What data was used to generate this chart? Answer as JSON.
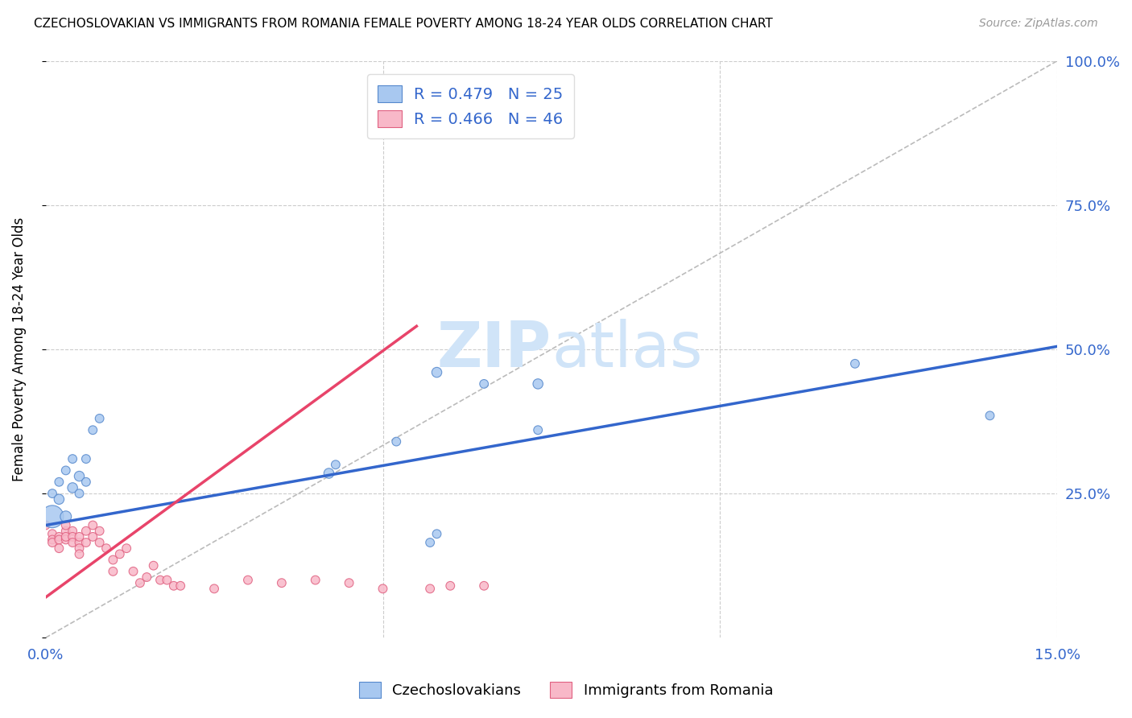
{
  "title": "CZECHOSLOVAKIAN VS IMMIGRANTS FROM ROMANIA FEMALE POVERTY AMONG 18-24 YEAR OLDS CORRELATION CHART",
  "source": "Source: ZipAtlas.com",
  "ylabel_left": "Female Poverty Among 18-24 Year Olds",
  "legend_blue_label": "R = 0.479   N = 25",
  "legend_pink_label": "R = 0.466   N = 46",
  "legend_label_czech": "Czechoslovakians",
  "legend_label_romania": "Immigrants from Romania",
  "blue_fill_color": "#a8c8f0",
  "pink_fill_color": "#f8b8c8",
  "blue_edge_color": "#5588cc",
  "pink_edge_color": "#e06080",
  "blue_line_color": "#3366cc",
  "pink_line_color": "#e8446a",
  "watermark_color": "#d0e4f8",
  "xlim": [
    0.0,
    0.15
  ],
  "ylim": [
    0.0,
    1.0
  ],
  "blue_line_x": [
    0.0,
    0.15
  ],
  "blue_line_y": [
    0.195,
    0.505
  ],
  "pink_line_x": [
    0.0,
    0.055
  ],
  "pink_line_y": [
    0.07,
    0.54
  ],
  "czech_x": [
    0.001,
    0.001,
    0.002,
    0.002,
    0.003,
    0.003,
    0.004,
    0.004,
    0.005,
    0.005,
    0.006,
    0.006,
    0.007,
    0.008,
    0.042,
    0.043,
    0.052,
    0.057,
    0.058,
    0.058,
    0.065,
    0.073,
    0.073,
    0.12,
    0.14
  ],
  "czech_y": [
    0.21,
    0.25,
    0.24,
    0.27,
    0.21,
    0.29,
    0.26,
    0.31,
    0.25,
    0.28,
    0.27,
    0.31,
    0.36,
    0.38,
    0.285,
    0.3,
    0.34,
    0.165,
    0.18,
    0.46,
    0.44,
    0.36,
    0.44,
    0.475,
    0.385
  ],
  "czech_sizes": [
    400,
    60,
    80,
    60,
    100,
    60,
    80,
    60,
    60,
    80,
    60,
    60,
    60,
    60,
    80,
    60,
    60,
    60,
    60,
    80,
    60,
    60,
    80,
    60,
    60
  ],
  "romania_x": [
    0.0,
    0.001,
    0.001,
    0.001,
    0.002,
    0.002,
    0.002,
    0.003,
    0.003,
    0.003,
    0.003,
    0.004,
    0.004,
    0.004,
    0.005,
    0.005,
    0.005,
    0.005,
    0.006,
    0.006,
    0.007,
    0.007,
    0.008,
    0.008,
    0.009,
    0.01,
    0.01,
    0.011,
    0.012,
    0.013,
    0.014,
    0.015,
    0.016,
    0.017,
    0.018,
    0.019,
    0.02,
    0.025,
    0.03,
    0.035,
    0.04,
    0.045,
    0.05,
    0.057,
    0.06,
    0.065
  ],
  "romania_y": [
    0.195,
    0.18,
    0.17,
    0.165,
    0.175,
    0.17,
    0.155,
    0.185,
    0.17,
    0.195,
    0.175,
    0.185,
    0.175,
    0.165,
    0.165,
    0.155,
    0.175,
    0.145,
    0.185,
    0.165,
    0.175,
    0.195,
    0.185,
    0.165,
    0.155,
    0.135,
    0.115,
    0.145,
    0.155,
    0.115,
    0.095,
    0.105,
    0.125,
    0.1,
    0.1,
    0.09,
    0.09,
    0.085,
    0.1,
    0.095,
    0.1,
    0.095,
    0.085,
    0.085,
    0.09,
    0.09
  ],
  "romania_sizes": [
    60,
    60,
    60,
    60,
    60,
    60,
    60,
    60,
    60,
    60,
    60,
    60,
    60,
    60,
    60,
    60,
    60,
    60,
    60,
    60,
    60,
    60,
    60,
    60,
    60,
    60,
    60,
    60,
    60,
    60,
    60,
    60,
    60,
    60,
    60,
    60,
    60,
    60,
    60,
    60,
    60,
    60,
    60,
    60,
    60,
    60
  ]
}
